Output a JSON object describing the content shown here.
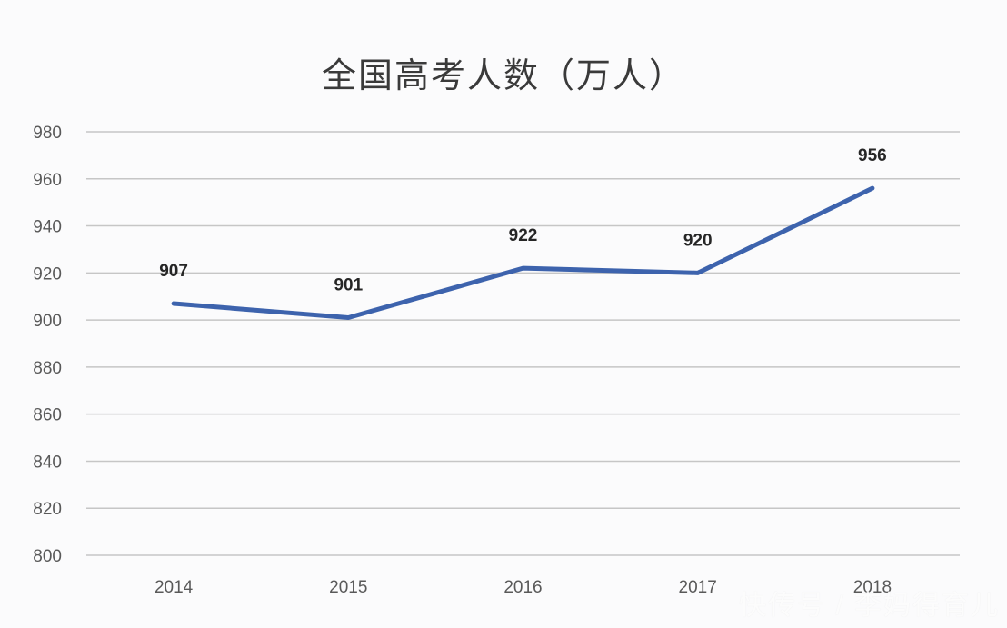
{
  "chart_data": {
    "type": "line",
    "title": "全国高考人数（万人）",
    "xlabel": "",
    "ylabel": "",
    "categories": [
      "2014",
      "2015",
      "2016",
      "2017",
      "2018"
    ],
    "series": [
      {
        "name": "全国高考人数（万人）",
        "values": [
          907,
          901,
          922,
          920,
          956
        ],
        "color": "#3d63ad"
      }
    ],
    "data_labels": [
      "907",
      "901",
      "922",
      "920",
      "956"
    ],
    "ylim": [
      800,
      980
    ],
    "yticks": [
      800,
      820,
      840,
      860,
      880,
      900,
      920,
      940,
      960,
      980
    ],
    "grid": true,
    "legend": null
  },
  "watermark": "快传号 / 李妈得育儿"
}
